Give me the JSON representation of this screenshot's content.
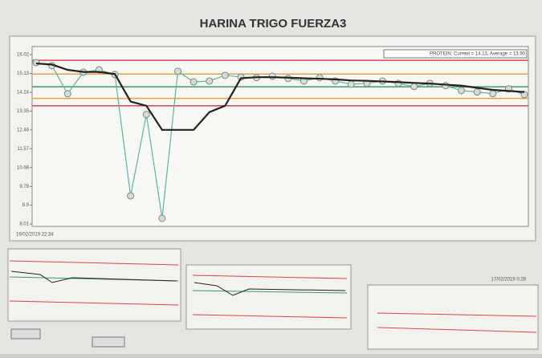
{
  "chart_data": {
    "type": "line",
    "title": "HARINA TRIGO FUERZA3",
    "legend_text": "PROTEIN: Current = 14.13, Average = 13.90",
    "x_start_label": "16/02/2019 22:34",
    "x_end_label": "17/02/2019 0:28",
    "series": [
      {
        "name": "PROTEIN",
        "color": "#5fb3a0",
        "markers": true,
        "values": [
          15.64,
          15.5,
          14.17,
          15.19,
          15.3,
          15.08,
          9.34,
          13.19,
          8.28,
          15.23,
          14.73,
          14.77,
          15.04,
          14.96,
          14.93,
          15.0,
          14.89,
          14.77,
          14.93,
          14.77,
          14.62,
          14.66,
          14.77,
          14.66,
          14.51,
          14.66,
          14.55,
          14.32,
          14.25,
          14.17,
          14.4,
          14.13
        ]
      },
      {
        "name": "Average",
        "color": "#222222",
        "markers": false,
        "values": [
          15.6,
          15.55,
          15.3,
          15.2,
          15.2,
          15.1,
          13.8,
          13.6,
          12.46,
          12.46,
          12.46,
          13.3,
          13.6,
          14.9,
          14.95,
          14.95,
          14.93,
          14.9,
          14.88,
          14.85,
          14.8,
          14.78,
          14.75,
          14.72,
          14.68,
          14.65,
          14.6,
          14.55,
          14.45,
          14.35,
          14.3,
          14.25
        ]
      }
    ],
    "reference_lines": [
      {
        "value": 15.75,
        "color": "#d9464a"
      },
      {
        "value": 15.1,
        "color": "#e8a050"
      },
      {
        "value": 14.5,
        "color": "#3f9a6a"
      },
      {
        "value": 13.95,
        "color": "#e8a050"
      },
      {
        "value": 13.6,
        "color": "#d9464a"
      }
    ],
    "ylim": [
      7.9,
      16.4
    ],
    "yticks": [
      8.01,
      8.9,
      9.79,
      10.68,
      11.57,
      12.46,
      13.35,
      14.24,
      15.13,
      16.02
    ],
    "grid": false
  }
}
